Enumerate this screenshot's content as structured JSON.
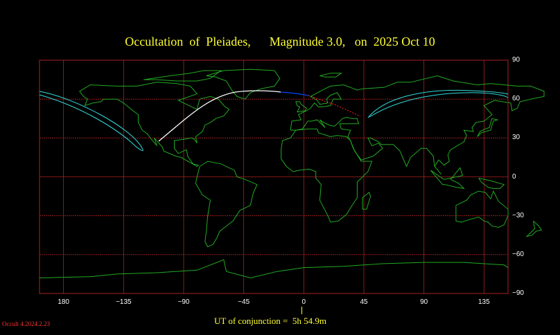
{
  "title": "Occultation  of  Pleiades,      Magnitude 3.0,   on  2025 Oct 10",
  "footer": {
    "ut_label": "UT of conjunction =  5h 54.9m",
    "version": "Occult 4.2024.2.23"
  },
  "map": {
    "x_ticks": [
      {
        "lon": -180,
        "label": "180"
      },
      {
        "lon": -135,
        "label": "−135"
      },
      {
        "lon": -90,
        "label": "−90"
      },
      {
        "lon": -45,
        "label": "−45"
      },
      {
        "lon": 0,
        "label": "0"
      },
      {
        "lon": 45,
        "label": "45"
      },
      {
        "lon": 90,
        "label": "90"
      },
      {
        "lon": 135,
        "label": "135"
      }
    ],
    "y_ticks": [
      {
        "lat": 90,
        "label": "90"
      },
      {
        "lat": 60,
        "label": "60"
      },
      {
        "lat": 30,
        "label": "30"
      },
      {
        "lat": 0,
        "label": "0"
      },
      {
        "lat": -30,
        "label": "−30"
      },
      {
        "lat": -60,
        "label": "−60"
      },
      {
        "lat": -90,
        "label": "−90"
      }
    ],
    "colors": {
      "grid": "#aa2222",
      "coast": "#22aa22",
      "path_day": "#ffffff",
      "path_twilight": "#0044ff",
      "path_predicted": "#ff2222",
      "limit": "#33dddd",
      "text": "#ffff33"
    }
  }
}
